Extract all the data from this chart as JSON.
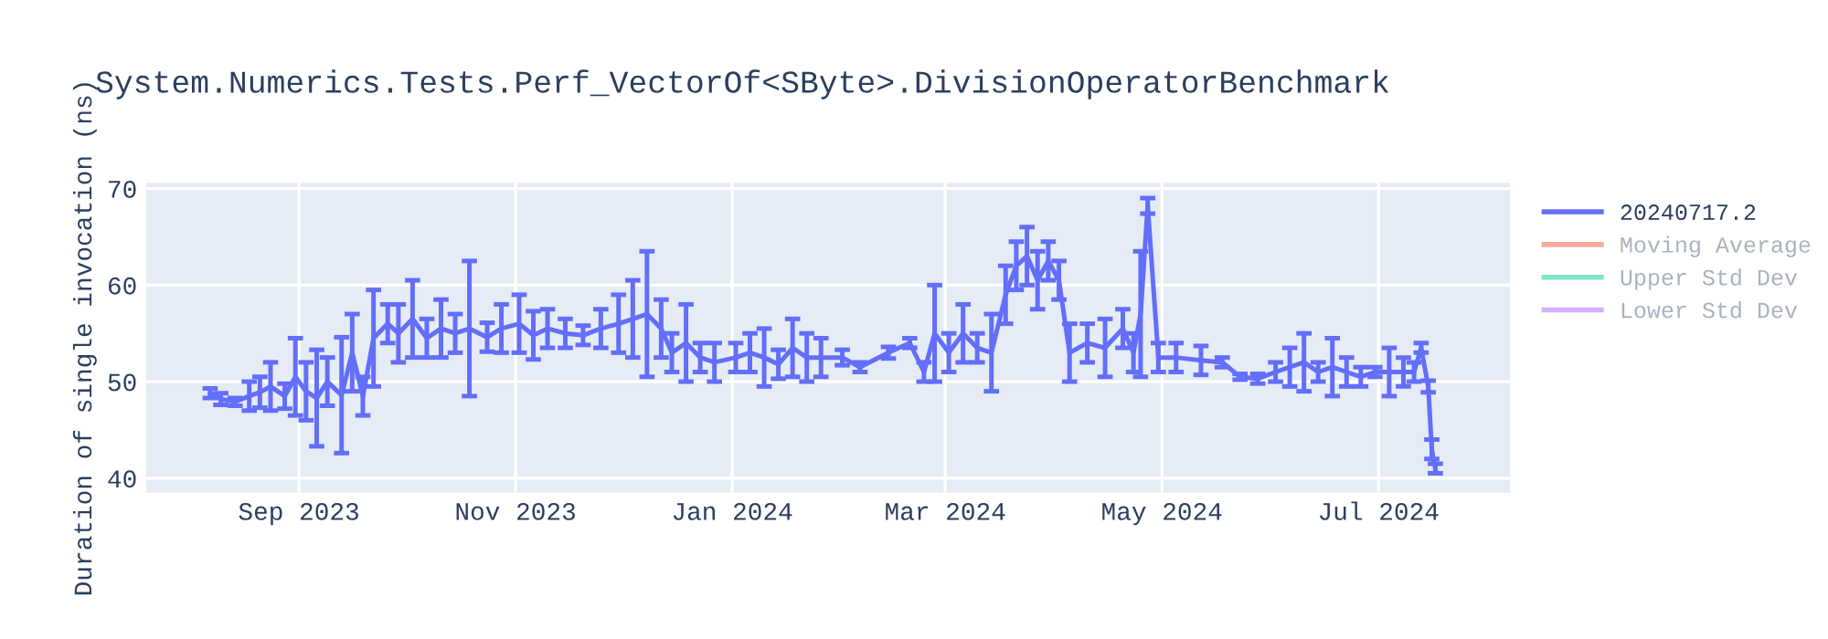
{
  "chart_data": {
    "type": "line",
    "title": "System.Numerics.Tests.Perf_VectorOf<SByte>.DivisionOperatorBenchmark",
    "ylabel": "Duration of single invocation (ns)",
    "xlim": [
      "2023-07-20",
      "2024-08-07"
    ],
    "xticks": [
      {
        "value": "2023-09-01",
        "label": "Sep 2023"
      },
      {
        "value": "2023-11-01",
        "label": "Nov 2023"
      },
      {
        "value": "2024-01-01",
        "label": "Jan 2024"
      },
      {
        "value": "2024-03-01",
        "label": "Mar 2024"
      },
      {
        "value": "2024-05-01",
        "label": "May 2024"
      },
      {
        "value": "2024-07-01",
        "label": "Jul 2024"
      }
    ],
    "ylim": [
      38.5,
      70.6
    ],
    "yticks": [
      40,
      50,
      60,
      70
    ],
    "grid": true,
    "legend": "top right",
    "x": [
      "2023-08-07",
      "2023-08-10",
      "2023-08-14",
      "2023-08-18",
      "2023-08-21",
      "2023-08-24",
      "2023-08-28",
      "2023-08-31",
      "2023-09-03",
      "2023-09-06",
      "2023-09-09",
      "2023-09-13",
      "2023-09-16",
      "2023-09-19",
      "2023-09-22",
      "2023-09-26",
      "2023-09-29",
      "2023-10-03",
      "2023-10-07",
      "2023-10-11",
      "2023-10-15",
      "2023-10-19",
      "2023-10-24",
      "2023-10-28",
      "2023-11-02",
      "2023-11-06",
      "2023-11-10",
      "2023-11-15",
      "2023-11-20",
      "2023-11-25",
      "2023-11-30",
      "2023-12-04",
      "2023-12-08",
      "2023-12-12",
      "2023-12-15",
      "2023-12-19",
      "2023-12-23",
      "2023-12-27",
      "2024-01-02",
      "2024-01-06",
      "2024-01-10",
      "2024-01-14",
      "2024-01-18",
      "2024-01-22",
      "2024-01-26",
      "2024-02-01",
      "2024-02-06",
      "2024-02-14",
      "2024-02-20",
      "2024-02-24",
      "2024-02-27",
      "2024-03-02",
      "2024-03-06",
      "2024-03-10",
      "2024-03-14",
      "2024-03-18",
      "2024-03-21",
      "2024-03-24",
      "2024-03-27",
      "2024-03-30",
      "2024-04-02",
      "2024-04-05",
      "2024-04-10",
      "2024-04-15",
      "2024-04-20",
      "2024-04-23",
      "2024-04-25",
      "2024-04-27",
      "2024-04-30",
      "2024-05-05",
      "2024-05-12",
      "2024-05-18",
      "2024-05-23",
      "2024-05-28",
      "2024-06-02",
      "2024-06-06",
      "2024-06-10",
      "2024-06-14",
      "2024-06-18",
      "2024-06-22",
      "2024-06-26",
      "2024-06-30",
      "2024-07-04",
      "2024-07-08",
      "2024-07-11",
      "2024-07-13",
      "2024-07-15",
      "2024-07-16",
      "2024-07-17"
    ],
    "series": [
      {
        "name": "20240717.2",
        "color": "#636efa",
        "values": [
          48.8,
          48.2,
          47.9,
          48.5,
          48.9,
          49.5,
          48.5,
          50.5,
          49,
          48.3,
          50,
          48.6,
          53,
          48.5,
          54.5,
          56,
          55,
          56.5,
          54.5,
          55.5,
          55,
          55.5,
          54.6,
          55.5,
          56,
          54.8,
          55.5,
          55,
          54.8,
          55.5,
          56,
          56.5,
          57,
          55.5,
          53,
          54,
          52.5,
          52,
          52.5,
          53,
          52.5,
          51.8,
          53.5,
          52.5,
          52.5,
          52.5,
          51.5,
          53,
          54,
          51,
          55,
          53,
          55,
          53.5,
          53,
          59,
          62,
          63,
          60.5,
          62.5,
          60.5,
          53,
          54,
          53.5,
          55.5,
          53,
          57,
          68.2,
          52.5,
          52.5,
          52.2,
          52,
          50.5,
          50.3,
          51,
          51.5,
          52,
          51,
          51.5,
          51,
          50.5,
          51,
          51,
          51,
          51,
          53.5,
          49.5,
          43,
          41
        ],
        "errors": [
          0.5,
          0.6,
          0.4,
          1.5,
          1.6,
          2.5,
          1.3,
          4,
          3,
          5,
          2.5,
          6,
          4,
          2,
          5,
          2,
          3,
          4,
          2,
          3,
          2,
          7,
          1.5,
          2.5,
          3,
          2.5,
          2,
          1.5,
          1,
          2,
          3,
          4,
          6.5,
          3,
          2,
          4,
          1.5,
          2,
          1.5,
          2,
          3,
          1.5,
          3,
          2.5,
          2,
          0.8,
          0.5,
          0.6,
          0.5,
          1,
          5,
          2,
          3,
          1.5,
          4,
          3,
          2.5,
          3,
          3,
          2,
          2,
          3,
          2,
          3,
          2,
          2,
          6.5,
          0.8,
          1.5,
          1.5,
          1.5,
          0.5,
          0.3,
          0.5,
          1,
          2,
          3,
          1,
          3,
          1.5,
          1,
          0.5,
          2.5,
          1.5,
          1,
          0.5,
          0.6,
          1,
          0.5
        ]
      },
      {
        "name": "Moving Average",
        "color": "#ef553b",
        "values": [
          null,
          null,
          null,
          null,
          null,
          null,
          null,
          null,
          null,
          null,
          null,
          null,
          null,
          null,
          null,
          null,
          null,
          null,
          null,
          null,
          null,
          null,
          null,
          null,
          null,
          null,
          null,
          null,
          null,
          null,
          null,
          null,
          null,
          null,
          null,
          null,
          null,
          null,
          null,
          null,
          null,
          null,
          null,
          null,
          null,
          null,
          null,
          null,
          null,
          null,
          null,
          null,
          null,
          null,
          null,
          null,
          null,
          null,
          null,
          null,
          null,
          null,
          null,
          null,
          null,
          null,
          null,
          null,
          null,
          null,
          null,
          null,
          null,
          null,
          null,
          null,
          null,
          null,
          null,
          null,
          null,
          null,
          null,
          null,
          null,
          null,
          null,
          null,
          null
        ]
      },
      {
        "name": "Upper Std Dev",
        "color": "#00cc96",
        "values": [
          null,
          null,
          null,
          null,
          null,
          null,
          null,
          null,
          null,
          null,
          null,
          null,
          null,
          null,
          null,
          null,
          null,
          null,
          null,
          null,
          null,
          null,
          null,
          null,
          null,
          null,
          null,
          null,
          null,
          null,
          null,
          null,
          null,
          null,
          null,
          null,
          null,
          null,
          null,
          null,
          null,
          null,
          null,
          null,
          null,
          null,
          null,
          null,
          null,
          null,
          null,
          null,
          null,
          null,
          null,
          null,
          null,
          null,
          null,
          null,
          null,
          null,
          null,
          null,
          null,
          null,
          null,
          null,
          null,
          null,
          null,
          null,
          null,
          null,
          null,
          null,
          null,
          null,
          null,
          null,
          null,
          null,
          null,
          null,
          null,
          null,
          null,
          null,
          null
        ]
      },
      {
        "name": "Lower Std Dev",
        "color": "#ab63fa",
        "values": [
          null,
          null,
          null,
          null,
          null,
          null,
          null,
          null,
          null,
          null,
          null,
          null,
          null,
          null,
          null,
          null,
          null,
          null,
          null,
          null,
          null,
          null,
          null,
          null,
          null,
          null,
          null,
          null,
          null,
          null,
          null,
          null,
          null,
          null,
          null,
          null,
          null,
          null,
          null,
          null,
          null,
          null,
          null,
          null,
          null,
          null,
          null,
          null,
          null,
          null,
          null,
          null,
          null,
          null,
          null,
          null,
          null,
          null,
          null,
          null,
          null,
          null,
          null,
          null,
          null,
          null,
          null,
          null,
          null,
          null,
          null,
          null,
          null,
          null,
          null,
          null,
          null,
          null,
          null,
          null,
          null,
          null,
          null,
          null,
          null,
          null,
          null,
          null,
          null
        ]
      }
    ]
  }
}
